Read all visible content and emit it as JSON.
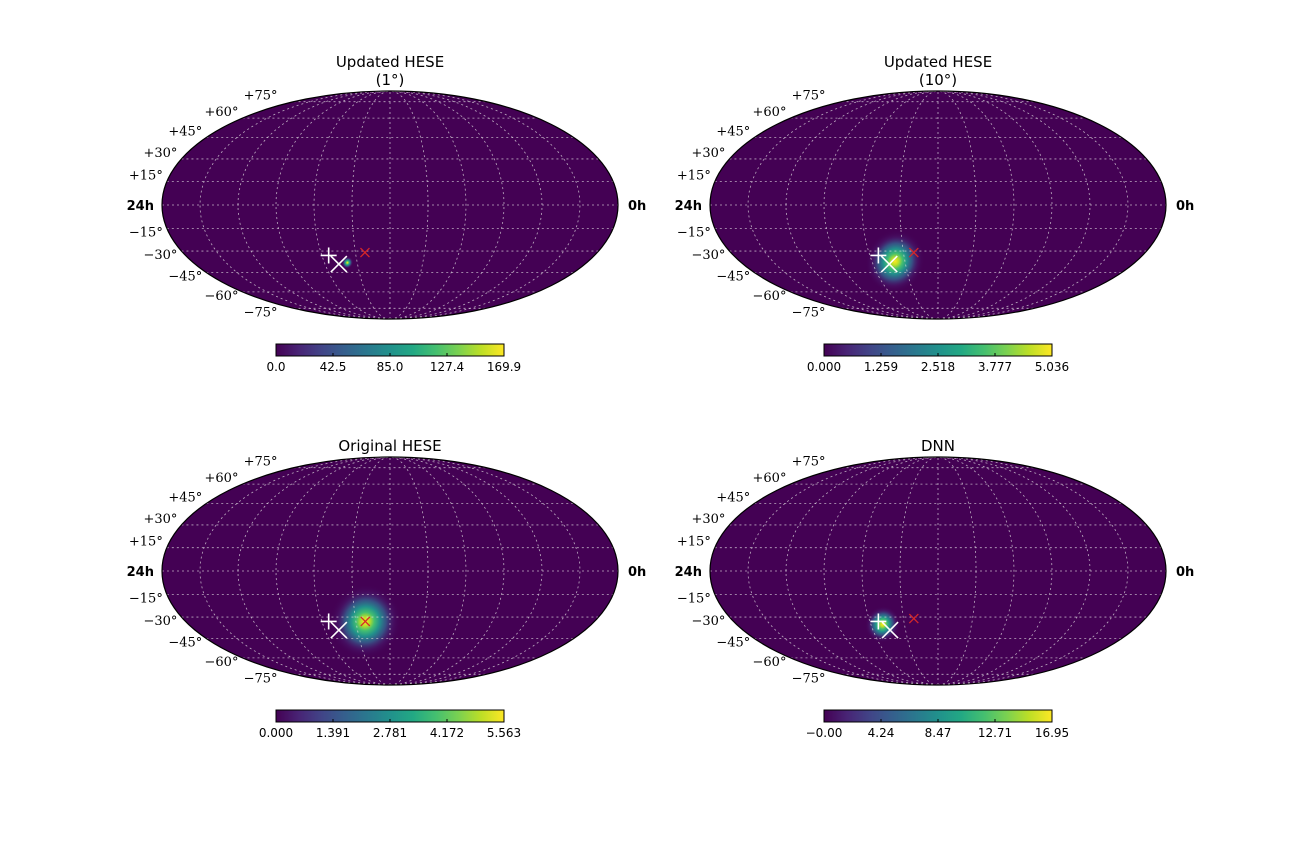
{
  "colors": {
    "background_sky": "#440154",
    "grid": "#e6e6e6",
    "markers": "#ffffff",
    "true_source": "#d62728",
    "colormap": [
      "#440154",
      "#482475",
      "#414487",
      "#355f8d",
      "#2a788e",
      "#21918c",
      "#22a884",
      "#44bf70",
      "#7ad151",
      "#bddf26",
      "#fde725"
    ]
  },
  "chart_data": [
    {
      "type": "heatmap",
      "projection": "mollweide",
      "title": [
        "Updated HESE",
        "(1°)"
      ],
      "ra_labels": {
        "left": "24h",
        "right": "0h"
      },
      "dec_labels": [
        "+75°",
        "+60°",
        "+45°",
        "+30°",
        "+15°",
        "−15°",
        "−30°",
        "−45°",
        "−60°",
        "−75°"
      ],
      "colorbar": {
        "ticks": [
          "0.0",
          "42.5",
          "85.0",
          "127.4",
          "169.9"
        ],
        "min": 0.0,
        "max": 169.9
      },
      "hotspots": [
        {
          "ra_h": 14.6,
          "dec": -38,
          "peak": 1.0,
          "sigma_deg": 1.2
        }
      ],
      "markers_plus": [
        {
          "ra_h": 15.6,
          "dec": -33
        }
      ],
      "markers_x_white": [
        {
          "ra_h": 15.15,
          "dec": -39
        }
      ],
      "markers_x_red": [
        {
          "ra_h": 13.45,
          "dec": -31
        }
      ]
    },
    {
      "type": "heatmap",
      "projection": "mollweide",
      "title": [
        "Updated HESE",
        "(10°)"
      ],
      "ra_labels": {
        "left": "24h",
        "right": "0h"
      },
      "dec_labels": [
        "+75°",
        "+60°",
        "+45°",
        "+30°",
        "+15°",
        "−15°",
        "−30°",
        "−45°",
        "−60°",
        "−75°"
      ],
      "colorbar": {
        "ticks": [
          "0.000",
          "1.259",
          "2.518",
          "3.777",
          "5.036"
        ],
        "min": 0.0,
        "max": 5.036
      },
      "hotspots": [
        {
          "ra_h": 14.6,
          "dec": -37,
          "peak": 1.0,
          "sigma_deg": 6
        }
      ],
      "markers_plus": [
        {
          "ra_h": 15.5,
          "dec": -33
        }
      ],
      "markers_x_white": [
        {
          "ra_h": 15.0,
          "dec": -39
        }
      ],
      "markers_x_red": [
        {
          "ra_h": 13.4,
          "dec": -31
        }
      ]
    },
    {
      "type": "heatmap",
      "projection": "mollweide",
      "title": [
        "Original HESE"
      ],
      "ra_labels": {
        "left": "24h",
        "right": "0h"
      },
      "dec_labels": [
        "+75°",
        "+60°",
        "+45°",
        "+30°",
        "+15°",
        "−15°",
        "−30°",
        "−45°",
        "−60°",
        "−75°"
      ],
      "colorbar": {
        "ticks": [
          "0.000",
          "1.391",
          "2.781",
          "4.172",
          "5.563"
        ],
        "min": 0.0,
        "max": 5.563
      },
      "hotspots": [
        {
          "ra_h": 13.45,
          "dec": -33,
          "peak": 1.0,
          "sigma_deg": 7
        }
      ],
      "markers_plus": [
        {
          "ra_h": 15.6,
          "dec": -33
        }
      ],
      "markers_x_white": [
        {
          "ra_h": 15.15,
          "dec": -39
        }
      ],
      "markers_x_red": [
        {
          "ra_h": 13.45,
          "dec": -33
        }
      ]
    },
    {
      "type": "heatmap",
      "projection": "mollweide",
      "title": [
        "DNN"
      ],
      "ra_labels": {
        "left": "24h",
        "right": "0h"
      },
      "dec_labels": [
        "+75°",
        "+60°",
        "+45°",
        "+30°",
        "+15°",
        "−15°",
        "−30°",
        "−45°",
        "−60°",
        "−75°"
      ],
      "colorbar": {
        "ticks": [
          "−0.00",
          "4.24",
          "8.47",
          "12.71",
          "16.95"
        ],
        "min": 0.0,
        "max": 16.95
      },
      "hotspots": [
        {
          "ra_h": 15.3,
          "dec": -35,
          "peak": 1.0,
          "sigma_deg": 3.5
        }
      ],
      "markers_plus": [
        {
          "ra_h": 15.5,
          "dec": -33
        }
      ],
      "markers_x_white": [
        {
          "ra_h": 14.95,
          "dec": -39
        }
      ],
      "markers_x_red": [
        {
          "ra_h": 13.4,
          "dec": -31
        }
      ]
    }
  ]
}
